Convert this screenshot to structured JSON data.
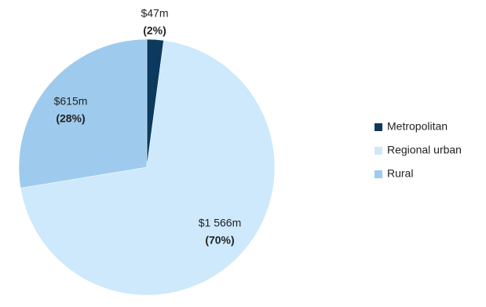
{
  "chart_data": {
    "type": "pie",
    "categories": [
      "Metropolitan",
      "Regional urban",
      "Rural"
    ],
    "values": [
      47,
      1566,
      615
    ],
    "value_labels": [
      "$47m",
      "$1 566m",
      "$615m"
    ],
    "percents": [
      2,
      70,
      28
    ],
    "percent_labels": [
      "(2%)",
      "(70%)",
      "(28%)"
    ],
    "colors": [
      "#0b3a5e",
      "#cde9fb",
      "#9ecbed"
    ],
    "legend": "right"
  }
}
